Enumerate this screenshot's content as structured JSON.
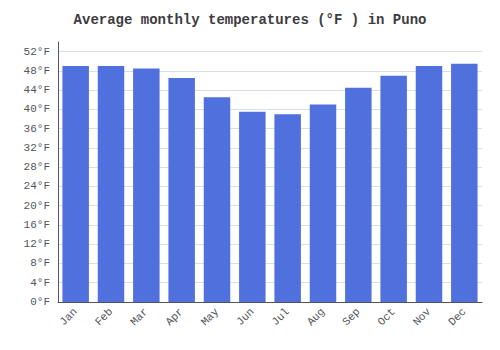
{
  "chart_data": {
    "type": "bar",
    "title": "Average monthly temperatures (°F ) in Puno",
    "categories": [
      "Jan",
      "Feb",
      "Mar",
      "Apr",
      "May",
      "Jun",
      "Jul",
      "Aug",
      "Sep",
      "Oct",
      "Nov",
      "Dec"
    ],
    "values": [
      49.0,
      49.0,
      48.5,
      46.5,
      42.5,
      39.5,
      39.0,
      41.0,
      44.5,
      47.0,
      49.0,
      49.5
    ],
    "ylim": [
      0,
      54
    ],
    "yticks": [
      {
        "value": 0,
        "label": "0°F"
      },
      {
        "value": 4,
        "label": "4°F"
      },
      {
        "value": 8,
        "label": "8°F"
      },
      {
        "value": 12,
        "label": "12°F"
      },
      {
        "value": 16,
        "label": "16°F"
      },
      {
        "value": 20,
        "label": "20°F"
      },
      {
        "value": 24,
        "label": "24°F"
      },
      {
        "value": 28,
        "label": "28°F"
      },
      {
        "value": 32,
        "label": "32°F"
      },
      {
        "value": 36,
        "label": "36°F"
      },
      {
        "value": 40,
        "label": "40°F"
      },
      {
        "value": 44,
        "label": "44°F"
      },
      {
        "value": 48,
        "label": "48°F"
      },
      {
        "value": 52,
        "label": "52°F"
      }
    ],
    "grid": true
  }
}
